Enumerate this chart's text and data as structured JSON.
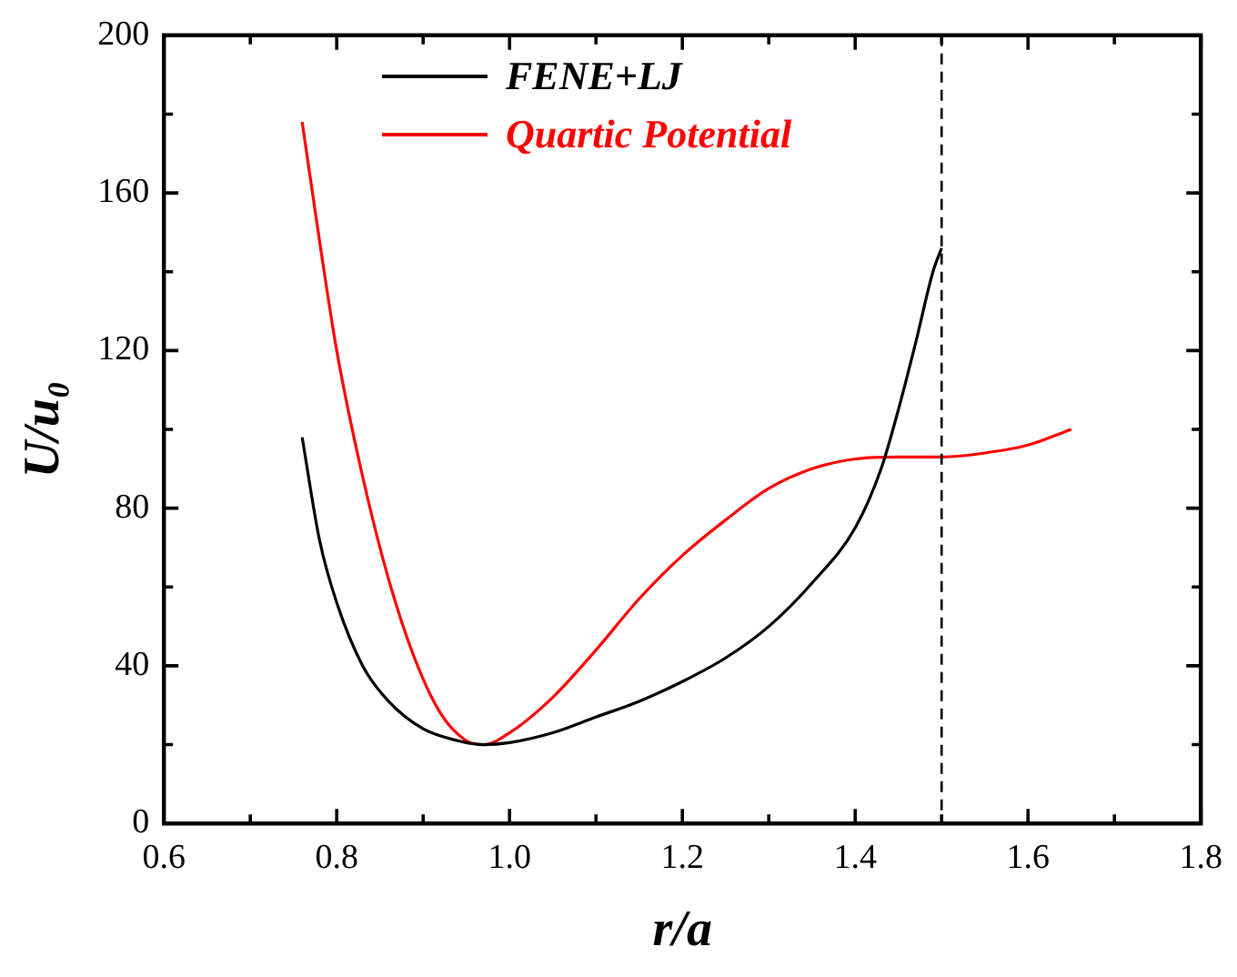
{
  "chart_data": {
    "type": "line",
    "xlabel": "r/a",
    "ylabel": "U/u₀",
    "xlim": [
      0.6,
      1.8
    ],
    "xticks": [
      0.6,
      {
        "value": 0.7,
        "label": null
      },
      0.8,
      {
        "value": 0.9,
        "label": null
      },
      "1.0",
      {
        "value": 1.1,
        "label": null
      },
      1.2,
      {
        "value": 1.3,
        "label": null
      },
      1.4,
      {
        "value": 1.5,
        "label": null
      },
      1.6,
      {
        "value": 1.7,
        "label": null
      },
      1.8
    ],
    "ylim": [
      0,
      200
    ],
    "yticks": [
      0,
      {
        "value": 20,
        "label": null
      },
      40,
      {
        "value": 60,
        "label": null
      },
      80,
      {
        "value": 100,
        "label": null
      },
      120,
      {
        "value": 140,
        "label": null
      },
      160,
      {
        "value": 180,
        "label": null
      },
      200
    ],
    "series": [
      {
        "name": "FENE+LJ",
        "color": "#000000",
        "x": [
          0.76,
          0.78,
          0.8,
          0.83,
          0.86,
          0.9,
          0.94,
          0.97,
          1.0,
          1.05,
          1.1,
          1.15,
          1.2,
          1.25,
          1.3,
          1.35,
          1.4,
          1.43,
          1.45,
          1.47,
          1.49,
          1.5
        ],
        "values": [
          98,
          72,
          56,
          40,
          31,
          24,
          21,
          20,
          20.5,
          23,
          27,
          31,
          36,
          42,
          50,
          61,
          75,
          90,
          105,
          122,
          140,
          146
        ]
      },
      {
        "name": "Quartic Potential",
        "color": "#ff0000",
        "x": [
          0.76,
          0.78,
          0.8,
          0.83,
          0.86,
          0.89,
          0.92,
          0.95,
          0.97,
          1.0,
          1.05,
          1.1,
          1.15,
          1.2,
          1.25,
          1.3,
          1.35,
          1.4,
          1.45,
          1.5,
          1.55,
          1.6,
          1.65
        ],
        "values": [
          178,
          148,
          120,
          88,
          62,
          42,
          28,
          21,
          20,
          23,
          32,
          44,
          57,
          68,
          77,
          85,
          90,
          92.5,
          93,
          93,
          94,
          96,
          100
        ]
      }
    ],
    "ref_lines": [
      {
        "axis": "x",
        "value": 1.5,
        "color": "#000000",
        "line_style": "dashed"
      }
    ],
    "legend": "top left",
    "grid": false,
    "marker": "none",
    "line_style": "solid"
  }
}
